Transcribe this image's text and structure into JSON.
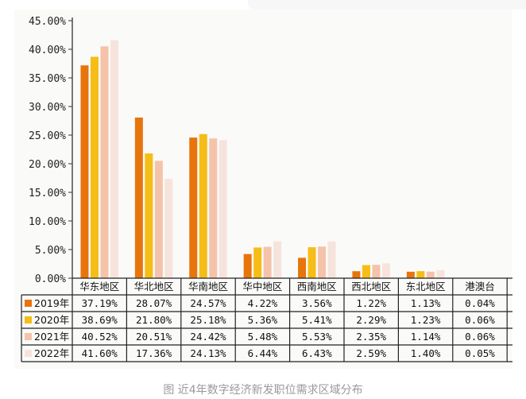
{
  "caption": "图 近4年数字经济新发职位需求区域分布",
  "chart_data": {
    "type": "bar",
    "categories": [
      "华东地区",
      "华北地区",
      "华南地区",
      "华中地区",
      "西南地区",
      "西北地区",
      "东北地区",
      "港澳台"
    ],
    "series": [
      {
        "name": "2019年",
        "values": [
          37.19,
          28.07,
          24.57,
          4.22,
          3.56,
          1.22,
          1.13,
          0.04
        ],
        "color": "#e8740c"
      },
      {
        "name": "2020年",
        "values": [
          38.69,
          21.8,
          25.18,
          5.36,
          5.41,
          2.29,
          1.23,
          0.06
        ],
        "color": "#f6bd16"
      },
      {
        "name": "2021年",
        "values": [
          40.52,
          20.51,
          24.42,
          5.48,
          5.53,
          2.35,
          1.14,
          0.06
        ],
        "color": "#f4c3aa"
      },
      {
        "name": "2022年",
        "values": [
          41.6,
          17.36,
          24.13,
          6.44,
          6.43,
          2.59,
          1.4,
          0.05
        ],
        "color": "#f6e4dc"
      }
    ],
    "cell_text": [
      [
        "37.19%",
        "28.07%",
        "24.57%",
        "4.22%",
        "3.56%",
        "1.22%",
        "1.13%",
        "0.04%"
      ],
      [
        "38.69%",
        "21.80%",
        "25.18%",
        "5.36%",
        "5.41%",
        "2.29%",
        "1.23%",
        "0.06%"
      ],
      [
        "40.52%",
        "20.51%",
        "24.42%",
        "5.48%",
        "5.53%",
        "2.35%",
        "1.14%",
        "0.06%"
      ],
      [
        "41.60%",
        "17.36%",
        "24.13%",
        "6.44%",
        "6.43%",
        "2.59%",
        "1.40%",
        "0.05%"
      ]
    ],
    "ylim": [
      0,
      45
    ],
    "yticks": [
      "0.00%",
      "5.00%",
      "10.00%",
      "15.00%",
      "20.00%",
      "25.00%",
      "30.00%",
      "35.00%",
      "40.00%",
      "45.00%"
    ],
    "grid": false,
    "legend": "data-table"
  }
}
